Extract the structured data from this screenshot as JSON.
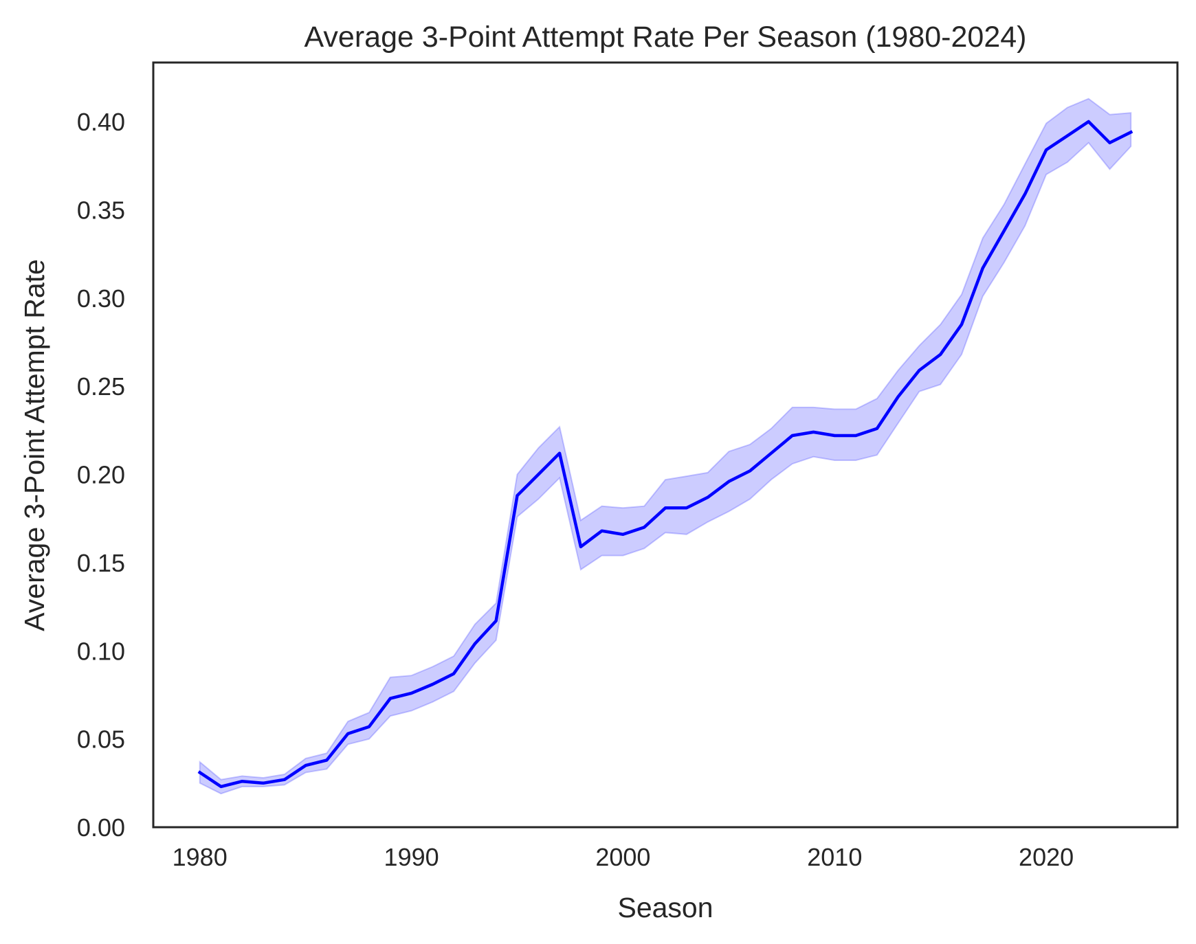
{
  "chart_data": {
    "type": "line",
    "title": "Average 3-Point Attempt Rate Per Season (1980-2024)",
    "xlabel": "Season",
    "ylabel": "Average 3-Point Attempt Rate",
    "xlim": [
      1977.8,
      2026.2
    ],
    "ylim": [
      0.0,
      0.4335
    ],
    "xticks": [
      1980,
      1990,
      2000,
      2010,
      2020
    ],
    "xtick_labels": [
      "1980",
      "1990",
      "2000",
      "2010",
      "2020"
    ],
    "yticks": [
      0.0,
      0.05,
      0.1,
      0.15,
      0.2,
      0.25,
      0.3,
      0.35,
      0.4
    ],
    "ytick_labels": [
      "0.00",
      "0.05",
      "0.10",
      "0.15",
      "0.20",
      "0.25",
      "0.30",
      "0.35",
      "0.40"
    ],
    "grid": false,
    "colors": {
      "line": "#0000ff",
      "band": "#0000ff",
      "frame": "#262626"
    },
    "series": [
      {
        "x": [
          1980,
          1981,
          1982,
          1983,
          1984,
          1985,
          1986,
          1987,
          1988,
          1989,
          1990,
          1991,
          1992,
          1993,
          1994,
          1995,
          1996,
          1997,
          1998,
          1999,
          2000,
          2001,
          2002,
          2003,
          2004,
          2005,
          2006,
          2007,
          2008,
          2009,
          2010,
          2011,
          2012,
          2013,
          2014,
          2015,
          2016,
          2017,
          2018,
          2019,
          2020,
          2021,
          2022,
          2023,
          2024
        ],
        "y": [
          0.031,
          0.023,
          0.026,
          0.025,
          0.027,
          0.035,
          0.038,
          0.053,
          0.057,
          0.073,
          0.076,
          0.081,
          0.087,
          0.104,
          0.117,
          0.188,
          0.2,
          0.212,
          0.159,
          0.168,
          0.166,
          0.17,
          0.181,
          0.181,
          0.187,
          0.196,
          0.202,
          0.212,
          0.222,
          0.224,
          0.222,
          0.222,
          0.226,
          0.244,
          0.259,
          0.268,
          0.285,
          0.317,
          0.338,
          0.359,
          0.384,
          0.392,
          0.4,
          0.388,
          0.394
        ],
        "ci_low": [
          0.025,
          0.019,
          0.023,
          0.023,
          0.024,
          0.031,
          0.033,
          0.047,
          0.05,
          0.063,
          0.066,
          0.071,
          0.077,
          0.093,
          0.106,
          0.176,
          0.186,
          0.198,
          0.146,
          0.154,
          0.154,
          0.158,
          0.167,
          0.166,
          0.173,
          0.179,
          0.186,
          0.197,
          0.206,
          0.21,
          0.208,
          0.208,
          0.211,
          0.229,
          0.247,
          0.251,
          0.268,
          0.301,
          0.32,
          0.341,
          0.37,
          0.377,
          0.388,
          0.373,
          0.386
        ],
        "ci_high": [
          0.037,
          0.027,
          0.029,
          0.028,
          0.03,
          0.039,
          0.042,
          0.06,
          0.065,
          0.085,
          0.086,
          0.091,
          0.097,
          0.115,
          0.127,
          0.2,
          0.215,
          0.227,
          0.174,
          0.182,
          0.181,
          0.182,
          0.197,
          0.199,
          0.201,
          0.213,
          0.217,
          0.226,
          0.238,
          0.238,
          0.237,
          0.237,
          0.243,
          0.259,
          0.273,
          0.285,
          0.302,
          0.334,
          0.353,
          0.376,
          0.399,
          0.408,
          0.413,
          0.404,
          0.405
        ]
      }
    ]
  }
}
